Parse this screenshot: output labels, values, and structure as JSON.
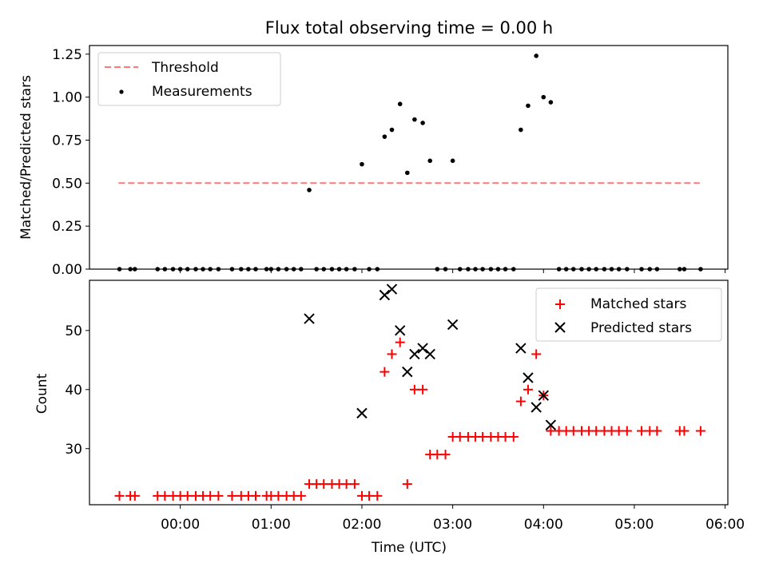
{
  "chart_data": [
    {
      "type": "scatter",
      "title": "Flux total observing time = 0.00 h",
      "xlabel": "",
      "ylabel": "Matched/Predicted stars",
      "xlim_hours": [
        -1.0,
        6.03
      ],
      "ylim": [
        0,
        1.3
      ],
      "yticks": [
        0.0,
        0.25,
        0.5,
        0.75,
        1.0,
        1.25
      ],
      "ytick_labels": [
        "0.00",
        "0.25",
        "0.50",
        "0.75",
        "1.00",
        "1.25"
      ],
      "legend_position": "top-left",
      "series": [
        {
          "name": "Threshold",
          "kind": "dashed-line",
          "color": "#ff7777",
          "x": [
            -0.68,
            5.72
          ],
          "y": [
            0.5,
            0.5
          ]
        },
        {
          "name": "Measurements",
          "kind": "points",
          "color": "#000000",
          "x": [
            -0.67,
            -0.55,
            -0.5,
            -0.25,
            -0.17,
            -0.08,
            0.0,
            0.08,
            0.17,
            0.25,
            0.33,
            0.42,
            0.57,
            0.67,
            0.75,
            0.83,
            0.95,
            1.0,
            1.08,
            1.17,
            1.25,
            1.33,
            1.42,
            1.5,
            1.58,
            1.67,
            1.75,
            1.83,
            1.92,
            2.0,
            2.08,
            2.17,
            2.25,
            2.33,
            2.42,
            2.5,
            2.58,
            2.67,
            2.75,
            2.83,
            2.92,
            3.0,
            3.08,
            3.17,
            3.25,
            3.33,
            3.42,
            3.5,
            3.58,
            3.67,
            3.75,
            3.83,
            3.92,
            4.0,
            4.08,
            4.17,
            4.25,
            4.33,
            4.42,
            4.5,
            4.58,
            4.67,
            4.75,
            4.83,
            4.92,
            5.08,
            5.17,
            5.25,
            5.5,
            5.55,
            5.73
          ],
          "y": [
            0,
            0,
            0,
            0,
            0,
            0,
            0,
            0,
            0,
            0,
            0,
            0,
            0,
            0,
            0,
            0,
            0,
            0,
            0,
            0,
            0,
            0,
            0.46,
            0,
            0,
            0,
            0,
            0,
            0,
            0.61,
            0,
            0,
            0.77,
            0.81,
            0.96,
            0.56,
            0.87,
            0.85,
            0.63,
            0,
            0,
            0.63,
            0,
            0,
            0,
            0,
            0,
            0,
            0,
            0,
            0.81,
            0.95,
            1.24,
            1.0,
            0.97,
            0,
            0,
            0,
            0,
            0,
            0,
            0,
            0,
            0,
            0,
            0,
            0,
            0,
            0,
            0,
            0
          ]
        }
      ]
    },
    {
      "type": "scatter",
      "title": "",
      "xlabel": "Time (UTC)",
      "ylabel": "Count",
      "xlim_hours": [
        -1.0,
        6.03
      ],
      "ylim": [
        20.5,
        58.5
      ],
      "yticks": [
        30,
        40,
        50
      ],
      "ytick_labels": [
        "30",
        "40",
        "50"
      ],
      "xticks_hours": [
        0,
        1,
        2,
        3,
        4,
        5,
        6
      ],
      "xtick_labels": [
        "00:00",
        "01:00",
        "02:00",
        "03:00",
        "04:00",
        "05:00",
        "06:00"
      ],
      "legend_position": "top-right",
      "series": [
        {
          "name": "Matched stars",
          "kind": "plus",
          "color": "#ff0000",
          "x": [
            -0.67,
            -0.55,
            -0.5,
            -0.25,
            -0.17,
            -0.08,
            0.0,
            0.08,
            0.17,
            0.25,
            0.33,
            0.42,
            0.57,
            0.67,
            0.75,
            0.83,
            0.95,
            1.0,
            1.08,
            1.17,
            1.25,
            1.33,
            1.42,
            1.5,
            1.58,
            1.67,
            1.75,
            1.83,
            1.92,
            2.0,
            2.08,
            2.17,
            2.25,
            2.33,
            2.42,
            2.5,
            2.58,
            2.67,
            2.75,
            2.83,
            2.92,
            3.0,
            3.08,
            3.17,
            3.25,
            3.33,
            3.42,
            3.5,
            3.58,
            3.67,
            3.75,
            3.83,
            3.92,
            4.0,
            4.08,
            4.17,
            4.25,
            4.33,
            4.42,
            4.5,
            4.58,
            4.67,
            4.75,
            4.83,
            4.92,
            5.08,
            5.17,
            5.25,
            5.5,
            5.55,
            5.73
          ],
          "y": [
            22,
            22,
            22,
            22,
            22,
            22,
            22,
            22,
            22,
            22,
            22,
            22,
            22,
            22,
            22,
            22,
            22,
            22,
            22,
            22,
            22,
            22,
            24,
            24,
            24,
            24,
            24,
            24,
            24,
            22,
            22,
            22,
            43,
            46,
            48,
            24,
            40,
            40,
            29,
            29,
            29,
            32,
            32,
            32,
            32,
            32,
            32,
            32,
            32,
            32,
            38,
            40,
            46,
            39,
            33,
            33,
            33,
            33,
            33,
            33,
            33,
            33,
            33,
            33,
            33,
            33,
            33,
            33,
            33,
            33,
            33
          ]
        },
        {
          "name": "Predicted stars",
          "kind": "x",
          "color": "#000000",
          "x": [
            1.42,
            2.0,
            2.25,
            2.33,
            2.42,
            2.5,
            2.58,
            2.67,
            2.75,
            3.0,
            3.75,
            3.83,
            3.92,
            4.0,
            4.08
          ],
          "y": [
            52,
            36,
            56,
            57,
            50,
            43,
            46,
            47,
            46,
            51,
            47,
            42,
            37,
            39,
            34
          ]
        }
      ]
    }
  ]
}
